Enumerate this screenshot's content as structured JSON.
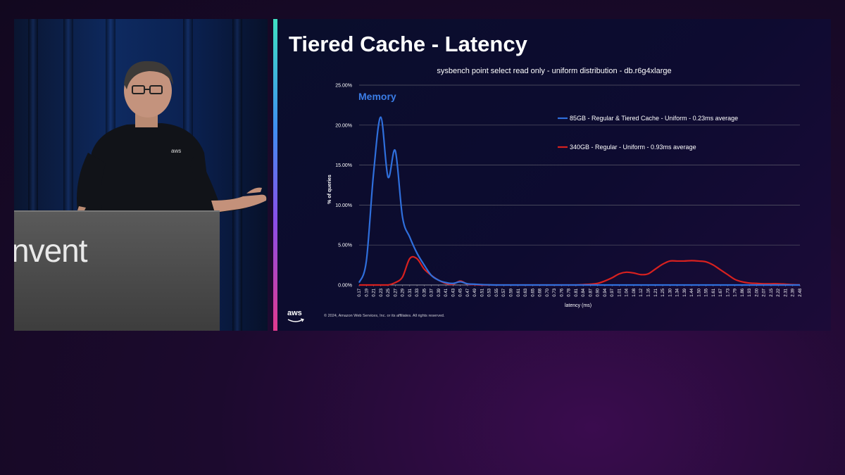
{
  "slide": {
    "title": "Tiered Cache - Latency",
    "annotation": "Memory",
    "copyright": "© 2024, Amazon Web Services, Inc. or its affiliates. All rights reserved.",
    "logo_text": "aws"
  },
  "stage": {
    "podium_text": "nvent"
  },
  "colors": {
    "series_blue": "#2f6fdc",
    "series_red": "#d8211f",
    "accent_gradient": [
      "#3fe0c2",
      "#3f8ff0",
      "#8a4ee8",
      "#e23a8e"
    ]
  },
  "chart_data": {
    "type": "line",
    "title": "sysbench point select read only - uniform distribution - db.r6g4xlarge",
    "xlabel": "latency (ms)",
    "ylabel": "% of queries",
    "ylim": [
      0,
      25
    ],
    "y_ticks": [
      "0.00%",
      "5.00%",
      "10.00%",
      "15.00%",
      "20.00%",
      "25.00%"
    ],
    "y_tick_values": [
      0,
      5,
      10,
      15,
      20,
      25
    ],
    "grid": true,
    "legend_position": "top-right",
    "categories": [
      "0.17",
      "0.19",
      "0.21",
      "0.23",
      "0.25",
      "0.27",
      "0.29",
      "0.31",
      "0.33",
      "0.35",
      "0.37",
      "0.39",
      "0.41",
      "0.43",
      "0.45",
      "0.47",
      "0.49",
      "0.51",
      "0.53",
      "0.55",
      "0.57",
      "0.59",
      "0.61",
      "0.63",
      "0.65",
      "0.68",
      "0.70",
      "0.73",
      "0.76",
      "0.78",
      "0.81",
      "0.84",
      "0.87",
      "0.90",
      "0.94",
      "0.97",
      "1.01",
      "1.04",
      "1.08",
      "1.12",
      "1.16",
      "1.21",
      "1.25",
      "1.30",
      "1.34",
      "1.39",
      "1.44",
      "1.50",
      "1.55",
      "1.61",
      "1.67",
      "1.73",
      "1.79",
      "1.86",
      "1.93",
      "2.00",
      "2.07",
      "2.15",
      "2.22",
      "2.31",
      "2.39",
      "2.48"
    ],
    "series": [
      {
        "name": "85GB - Regular & Tiered Cache - Uniform  - 0.23ms average",
        "color": "#2f6fdc",
        "values": [
          0.3,
          3.0,
          14.0,
          21.0,
          13.5,
          16.8,
          8.5,
          6.0,
          4.0,
          2.5,
          1.2,
          0.6,
          0.3,
          0.2,
          0.4,
          0.15,
          0.1,
          0.05,
          0.02,
          0,
          0,
          0,
          0,
          0,
          0,
          0,
          0,
          0,
          0,
          0,
          0,
          0,
          0,
          0,
          0,
          0,
          0,
          0,
          0,
          0,
          0,
          0,
          0,
          0,
          0,
          0,
          0,
          0,
          0,
          0,
          0,
          0,
          0,
          0,
          0,
          0,
          0,
          0,
          0,
          0,
          0,
          0
        ]
      },
      {
        "name": "340GB - Regular - Uniform - 0.93ms average",
        "color": "#d8211f",
        "values": [
          0,
          0,
          0,
          0,
          0,
          0.3,
          1.0,
          3.3,
          3.3,
          2.0,
          1.2,
          0.6,
          0.2,
          0.1,
          0.5,
          0.1,
          0.05,
          0,
          0,
          0,
          0,
          0,
          0,
          0,
          0,
          0,
          0,
          0,
          0,
          0,
          0,
          0.05,
          0.1,
          0.2,
          0.5,
          0.9,
          1.4,
          1.6,
          1.5,
          1.3,
          1.4,
          2.0,
          2.6,
          3.0,
          3.0,
          3.0,
          3.05,
          3.0,
          2.9,
          2.5,
          1.9,
          1.3,
          0.7,
          0.4,
          0.25,
          0.2,
          0.15,
          0.15,
          0.15,
          0.1,
          0.05,
          0.02
        ]
      }
    ]
  }
}
